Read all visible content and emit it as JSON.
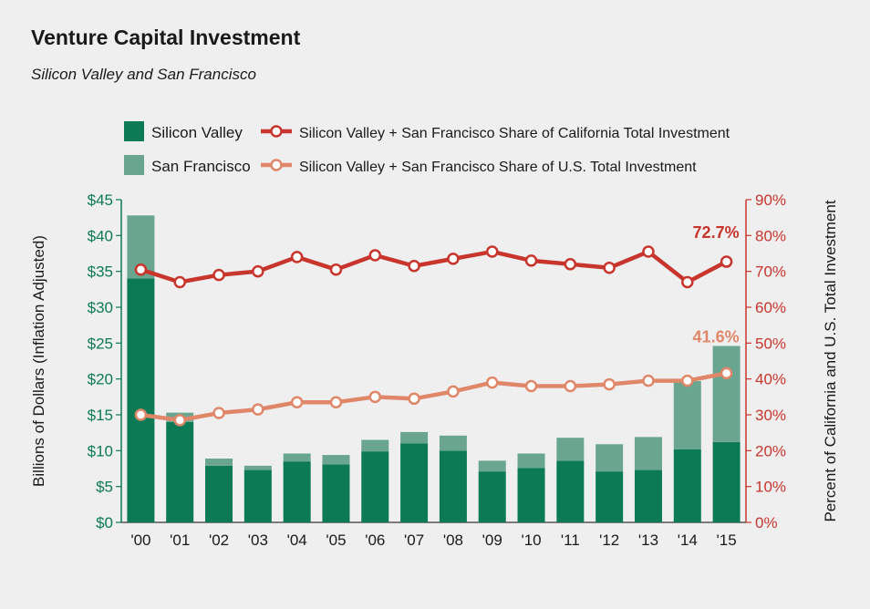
{
  "title": "Venture Capital Investment",
  "subtitle": "Silicon Valley and San Francisco",
  "colors": {
    "silicon_valley": "#0b7a55",
    "san_francisco": "#6aa68f",
    "ca_share_line": "#c8352d",
    "us_share_line": "#e0876a",
    "left_axis_text": "#0b7a55",
    "right_axis_text": "#c8352d"
  },
  "chart_data": {
    "type": "bar",
    "title": "Venture Capital Investment",
    "subtitle": "Silicon Valley and San Francisco",
    "categories": [
      "'00",
      "'01",
      "'02",
      "'03",
      "'04",
      "'05",
      "'06",
      "'07",
      "'08",
      "'09",
      "'10",
      "'11",
      "'12",
      "'13",
      "'14",
      "'15"
    ],
    "ylabel": "Billions of Dollars (Inflation Adjusted)",
    "y2label": "Percent of California and U.S. Total Investment",
    "ylim": [
      0,
      45
    ],
    "y2lim": [
      0,
      90
    ],
    "yticks": [
      "$0",
      "$5",
      "$10",
      "$15",
      "$20",
      "$25",
      "$30",
      "$35",
      "$40",
      "$45"
    ],
    "y2ticks": [
      "0%",
      "10%",
      "20%",
      "30%",
      "40%",
      "50%",
      "60%",
      "70%",
      "80%",
      "90%"
    ],
    "stacked": true,
    "grid": false,
    "legend_placement": "top",
    "series": [
      {
        "name": "Silicon Valley",
        "kind": "bar",
        "axis": "left",
        "values": [
          34.0,
          14.0,
          7.9,
          7.3,
          8.5,
          8.1,
          9.9,
          11.0,
          10.0,
          7.1,
          7.6,
          8.6,
          7.1,
          7.3,
          10.2,
          11.2
        ]
      },
      {
        "name": "San Francisco",
        "kind": "bar",
        "axis": "left",
        "values": [
          8.8,
          1.3,
          1.0,
          0.6,
          1.1,
          1.3,
          1.6,
          1.6,
          2.1,
          1.5,
          2.0,
          3.2,
          3.8,
          4.6,
          9.5,
          13.4
        ]
      },
      {
        "name": "Silicon Valley + San Francisco Share of California Total Investment",
        "kind": "line",
        "axis": "right",
        "values": [
          70.5,
          67.0,
          69.0,
          70.0,
          74.0,
          70.5,
          74.5,
          71.5,
          73.5,
          75.5,
          73.0,
          72.0,
          71.0,
          75.5,
          67.0,
          72.7
        ]
      },
      {
        "name": "Silicon Valley + San Francisco Share of U.S. Total Investment",
        "kind": "line",
        "axis": "right",
        "values": [
          30.0,
          28.5,
          30.5,
          31.5,
          33.5,
          33.5,
          35.0,
          34.5,
          36.5,
          39.0,
          38.0,
          38.0,
          38.5,
          39.5,
          39.5,
          41.6
        ]
      }
    ],
    "annotations": [
      "72.7%",
      "41.6%"
    ]
  }
}
